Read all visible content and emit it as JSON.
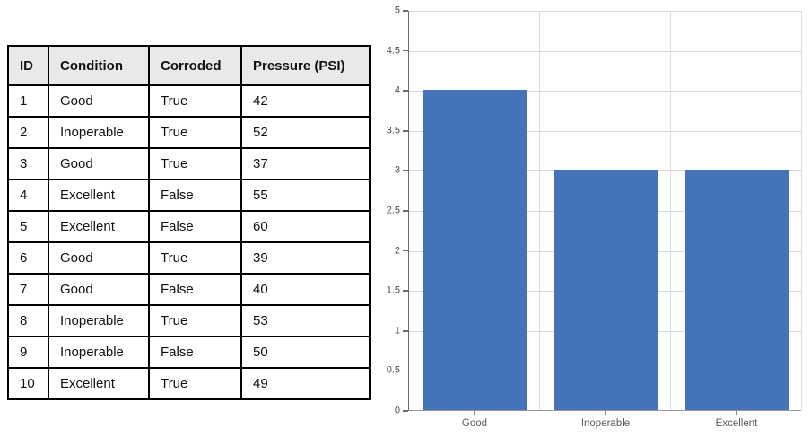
{
  "page": {
    "background": "#ffffff"
  },
  "table": {
    "headers": [
      "ID",
      "Condition",
      "Corroded",
      "Pressure (PSI)"
    ],
    "rows": [
      [
        "1",
        "Good",
        "True",
        "42"
      ],
      [
        "2",
        "Inoperable",
        "True",
        "52"
      ],
      [
        "3",
        "Good",
        "True",
        "37"
      ],
      [
        "4",
        "Excellent",
        "False",
        "55"
      ],
      [
        "5",
        "Excellent",
        "False",
        "60"
      ],
      [
        "6",
        "Good",
        "True",
        "39"
      ],
      [
        "7",
        "Good",
        "False",
        "40"
      ],
      [
        "8",
        "Inoperable",
        "True",
        "53"
      ],
      [
        "9",
        "Inoperable",
        "False",
        "50"
      ],
      [
        "10",
        "Excellent",
        "True",
        "49"
      ]
    ],
    "header_bg": "#e9e9e9",
    "border_color": "#000000"
  },
  "chart_data": {
    "type": "bar",
    "categories": [
      "Good",
      "Inoperable",
      "Excellent"
    ],
    "values": [
      4,
      3,
      3
    ],
    "title": "",
    "xlabel": "",
    "ylabel": "",
    "ylim": [
      0,
      5
    ],
    "ytick_step": 0.5,
    "ytick_labels": [
      "0",
      "0.5",
      "1",
      "1.5",
      "2",
      "2.5",
      "3",
      "3.5",
      "4",
      "4.5",
      "5"
    ],
    "grid": true,
    "legend": false,
    "bar_color": "#4473b9",
    "bar_width_fraction": 0.8,
    "gridline_color": "#dadada",
    "axis_color": "#6e6e6e",
    "tick_label_color": "#4d4d4d",
    "category_label_color": "#595959"
  }
}
